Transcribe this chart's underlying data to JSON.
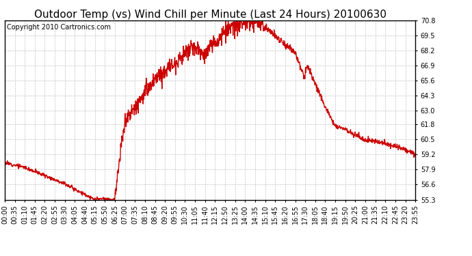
{
  "title": "Outdoor Temp (vs) Wind Chill per Minute (Last 24 Hours) 20100630",
  "copyright_text": "Copyright 2010 Cartronics.com",
  "line_color": "#cc0000",
  "background_color": "#ffffff",
  "grid_color": "#bbbbbb",
  "ylim": [
    55.3,
    70.8
  ],
  "yticks": [
    55.3,
    56.6,
    57.9,
    59.2,
    60.5,
    61.8,
    63.0,
    64.3,
    65.6,
    66.9,
    68.2,
    69.5,
    70.8
  ],
  "xtick_labels": [
    "00:00",
    "00:35",
    "01:10",
    "01:45",
    "02:20",
    "02:55",
    "03:30",
    "04:05",
    "04:40",
    "05:15",
    "05:50",
    "06:25",
    "07:00",
    "07:35",
    "08:10",
    "08:45",
    "09:20",
    "09:55",
    "10:30",
    "11:05",
    "11:40",
    "12:15",
    "12:50",
    "13:25",
    "14:00",
    "14:35",
    "15:10",
    "15:45",
    "16:20",
    "16:55",
    "17:30",
    "18:05",
    "18:40",
    "19:15",
    "19:50",
    "20:25",
    "21:00",
    "21:35",
    "22:10",
    "22:45",
    "23:20",
    "23:55"
  ],
  "title_fontsize": 11,
  "copyright_fontsize": 7,
  "tick_fontsize": 7,
  "line_width": 1.0,
  "noise_seed": 12
}
